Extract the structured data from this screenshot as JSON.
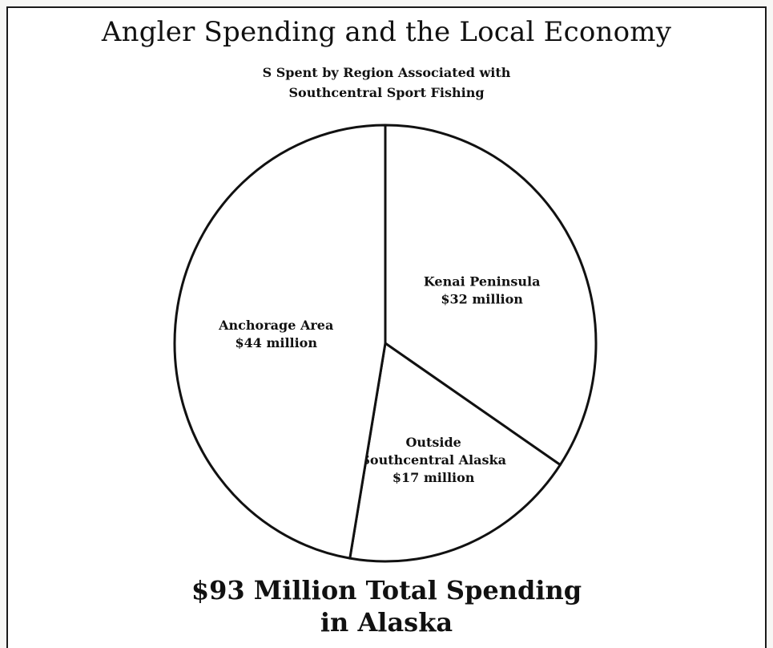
{
  "chart_data": {
    "type": "pie",
    "title": "Angler Spending and the Local Economy",
    "subtitle": "S Spent by Region Associated with\nSouthcentral Sport Fishing",
    "footer": "$93 Million Total Spending\nin Alaska",
    "slices": [
      {
        "label": "Kenai Peninsula",
        "value_label": "$32 million",
        "value": 32
      },
      {
        "label": "Outside\nSouthcentral Alaska",
        "value_label": "$17 million",
        "value": 17
      },
      {
        "label": "Anchorage Area",
        "value_label": "$44 million",
        "value": 44
      }
    ],
    "start_angle_deg": 0,
    "direction": "clockwise",
    "colors": {
      "fill": "#ffffff",
      "stroke": "#111111"
    }
  }
}
